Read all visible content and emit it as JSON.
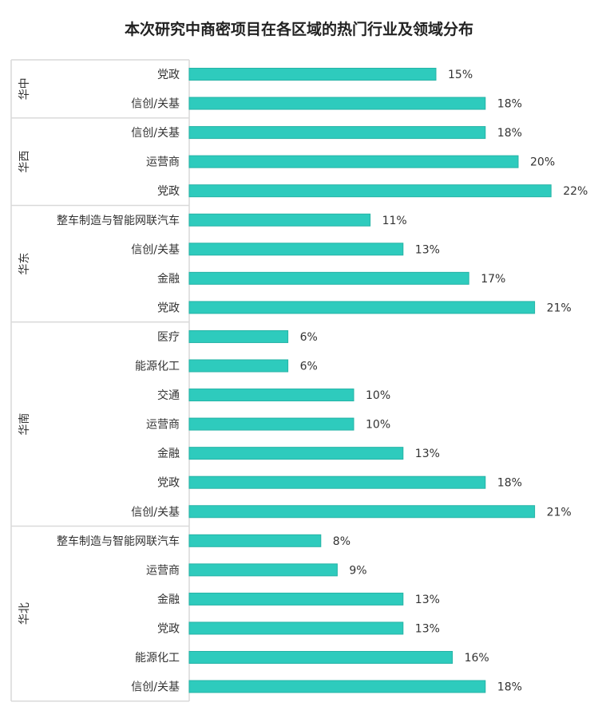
{
  "chart_data": {
    "type": "bar",
    "orientation": "horizontal",
    "title": "本次研究中商密项目在各区域的热门行业及领域分布",
    "value_format": "percent",
    "bar_color": "#2ecbbd",
    "xlim": [
      0,
      22
    ],
    "groups": [
      {
        "region": "华中",
        "categories": [
          "党政",
          "信创/关基"
        ],
        "values": [
          15,
          18
        ]
      },
      {
        "region": "华西",
        "categories": [
          "信创/关基",
          "运营商",
          "党政"
        ],
        "values": [
          18,
          20,
          22
        ]
      },
      {
        "region": "华东",
        "categories": [
          "整车制造与智能网联汽车",
          "信创/关基",
          "金融",
          "党政"
        ],
        "values": [
          11,
          13,
          17,
          21
        ]
      },
      {
        "region": "华南",
        "categories": [
          "医疗",
          "能源化工",
          "交通",
          "运营商",
          "金融",
          "党政",
          "信创/关基"
        ],
        "values": [
          6,
          6,
          10,
          10,
          13,
          18,
          21
        ]
      },
      {
        "region": "华北",
        "categories": [
          "整车制造与智能网联汽车",
          "运营商",
          "金融",
          "党政",
          "能源化工",
          "信创/关基"
        ],
        "values": [
          8,
          9,
          13,
          13,
          16,
          18
        ]
      }
    ]
  }
}
